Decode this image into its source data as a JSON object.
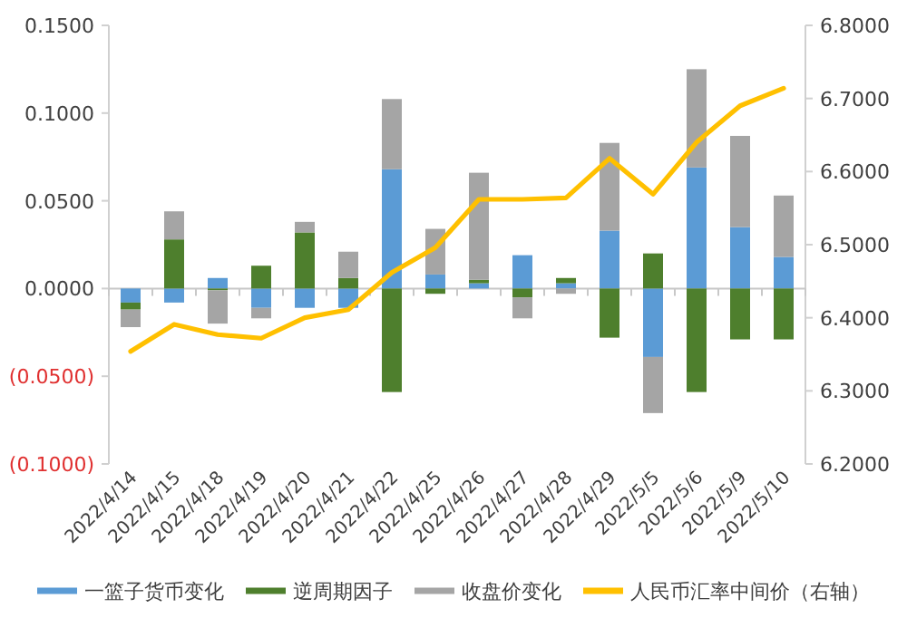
{
  "chart_data": {
    "type": "bar",
    "stacked": true,
    "legend": "bottom",
    "categories": [
      "2022/4/14",
      "2022/4/15",
      "2022/4/18",
      "2022/4/19",
      "2022/4/20",
      "2022/4/21",
      "2022/4/22",
      "2022/4/25",
      "2022/4/26",
      "2022/4/27",
      "2022/4/28",
      "2022/4/29",
      "2022/5/5",
      "2022/5/6",
      "2022/5/9",
      "2022/5/10"
    ],
    "series": [
      {
        "name": "一篮子货币变化",
        "color": "#5b9bd5",
        "values": [
          -0.008,
          -0.008,
          0.006,
          -0.011,
          -0.011,
          -0.011,
          0.068,
          0.008,
          0.003,
          0.019,
          0.003,
          0.033,
          -0.039,
          0.069,
          0.035,
          0.018
        ]
      },
      {
        "name": "逆周期因子",
        "color": "#4e7f2d",
        "values": [
          -0.004,
          0.028,
          -0.001,
          0.013,
          0.032,
          0.006,
          -0.059,
          -0.003,
          0.002,
          -0.005,
          0.003,
          -0.028,
          0.02,
          -0.059,
          -0.029,
          -0.029
        ]
      },
      {
        "name": "收盘价变化",
        "color": "#a5a5a5",
        "values": [
          -0.01,
          0.016,
          -0.019,
          -0.006,
          0.006,
          0.015,
          0.04,
          0.026,
          0.061,
          -0.012,
          -0.003,
          0.05,
          -0.032,
          0.056,
          0.052,
          0.035
        ]
      },
      {
        "name": "人民币汇率中间价（右轴）",
        "color": "#ffc000",
        "type": "line",
        "axis": "y2",
        "values": [
          6.354,
          6.391,
          6.377,
          6.372,
          6.4,
          6.411,
          6.462,
          6.496,
          6.562,
          6.562,
          6.564,
          6.618,
          6.569,
          6.64,
          6.69,
          6.714
        ]
      }
    ],
    "ylim": [
      -0.1,
      0.15
    ],
    "yticks": [
      {
        "value": -0.1,
        "label": "(0.1000)"
      },
      {
        "value": -0.05,
        "label": "(0.0500)"
      },
      {
        "value": 0,
        "label": "0.0000"
      },
      {
        "value": 0.05,
        "label": "0.0500"
      },
      {
        "value": 0.1,
        "label": "0.1000"
      },
      {
        "value": 0.15,
        "label": "0.1500"
      }
    ],
    "y2lim": [
      6.2,
      6.8
    ],
    "y2ticks": [
      {
        "value": 6.2,
        "label": "6.2000"
      },
      {
        "value": 6.3,
        "label": "6.3000"
      },
      {
        "value": 6.4,
        "label": "6.4000"
      },
      {
        "value": 6.5,
        "label": "6.5000"
      },
      {
        "value": 6.6,
        "label": "6.6000"
      },
      {
        "value": 6.7,
        "label": "6.7000"
      },
      {
        "value": 6.8,
        "label": "6.8000"
      }
    ]
  }
}
